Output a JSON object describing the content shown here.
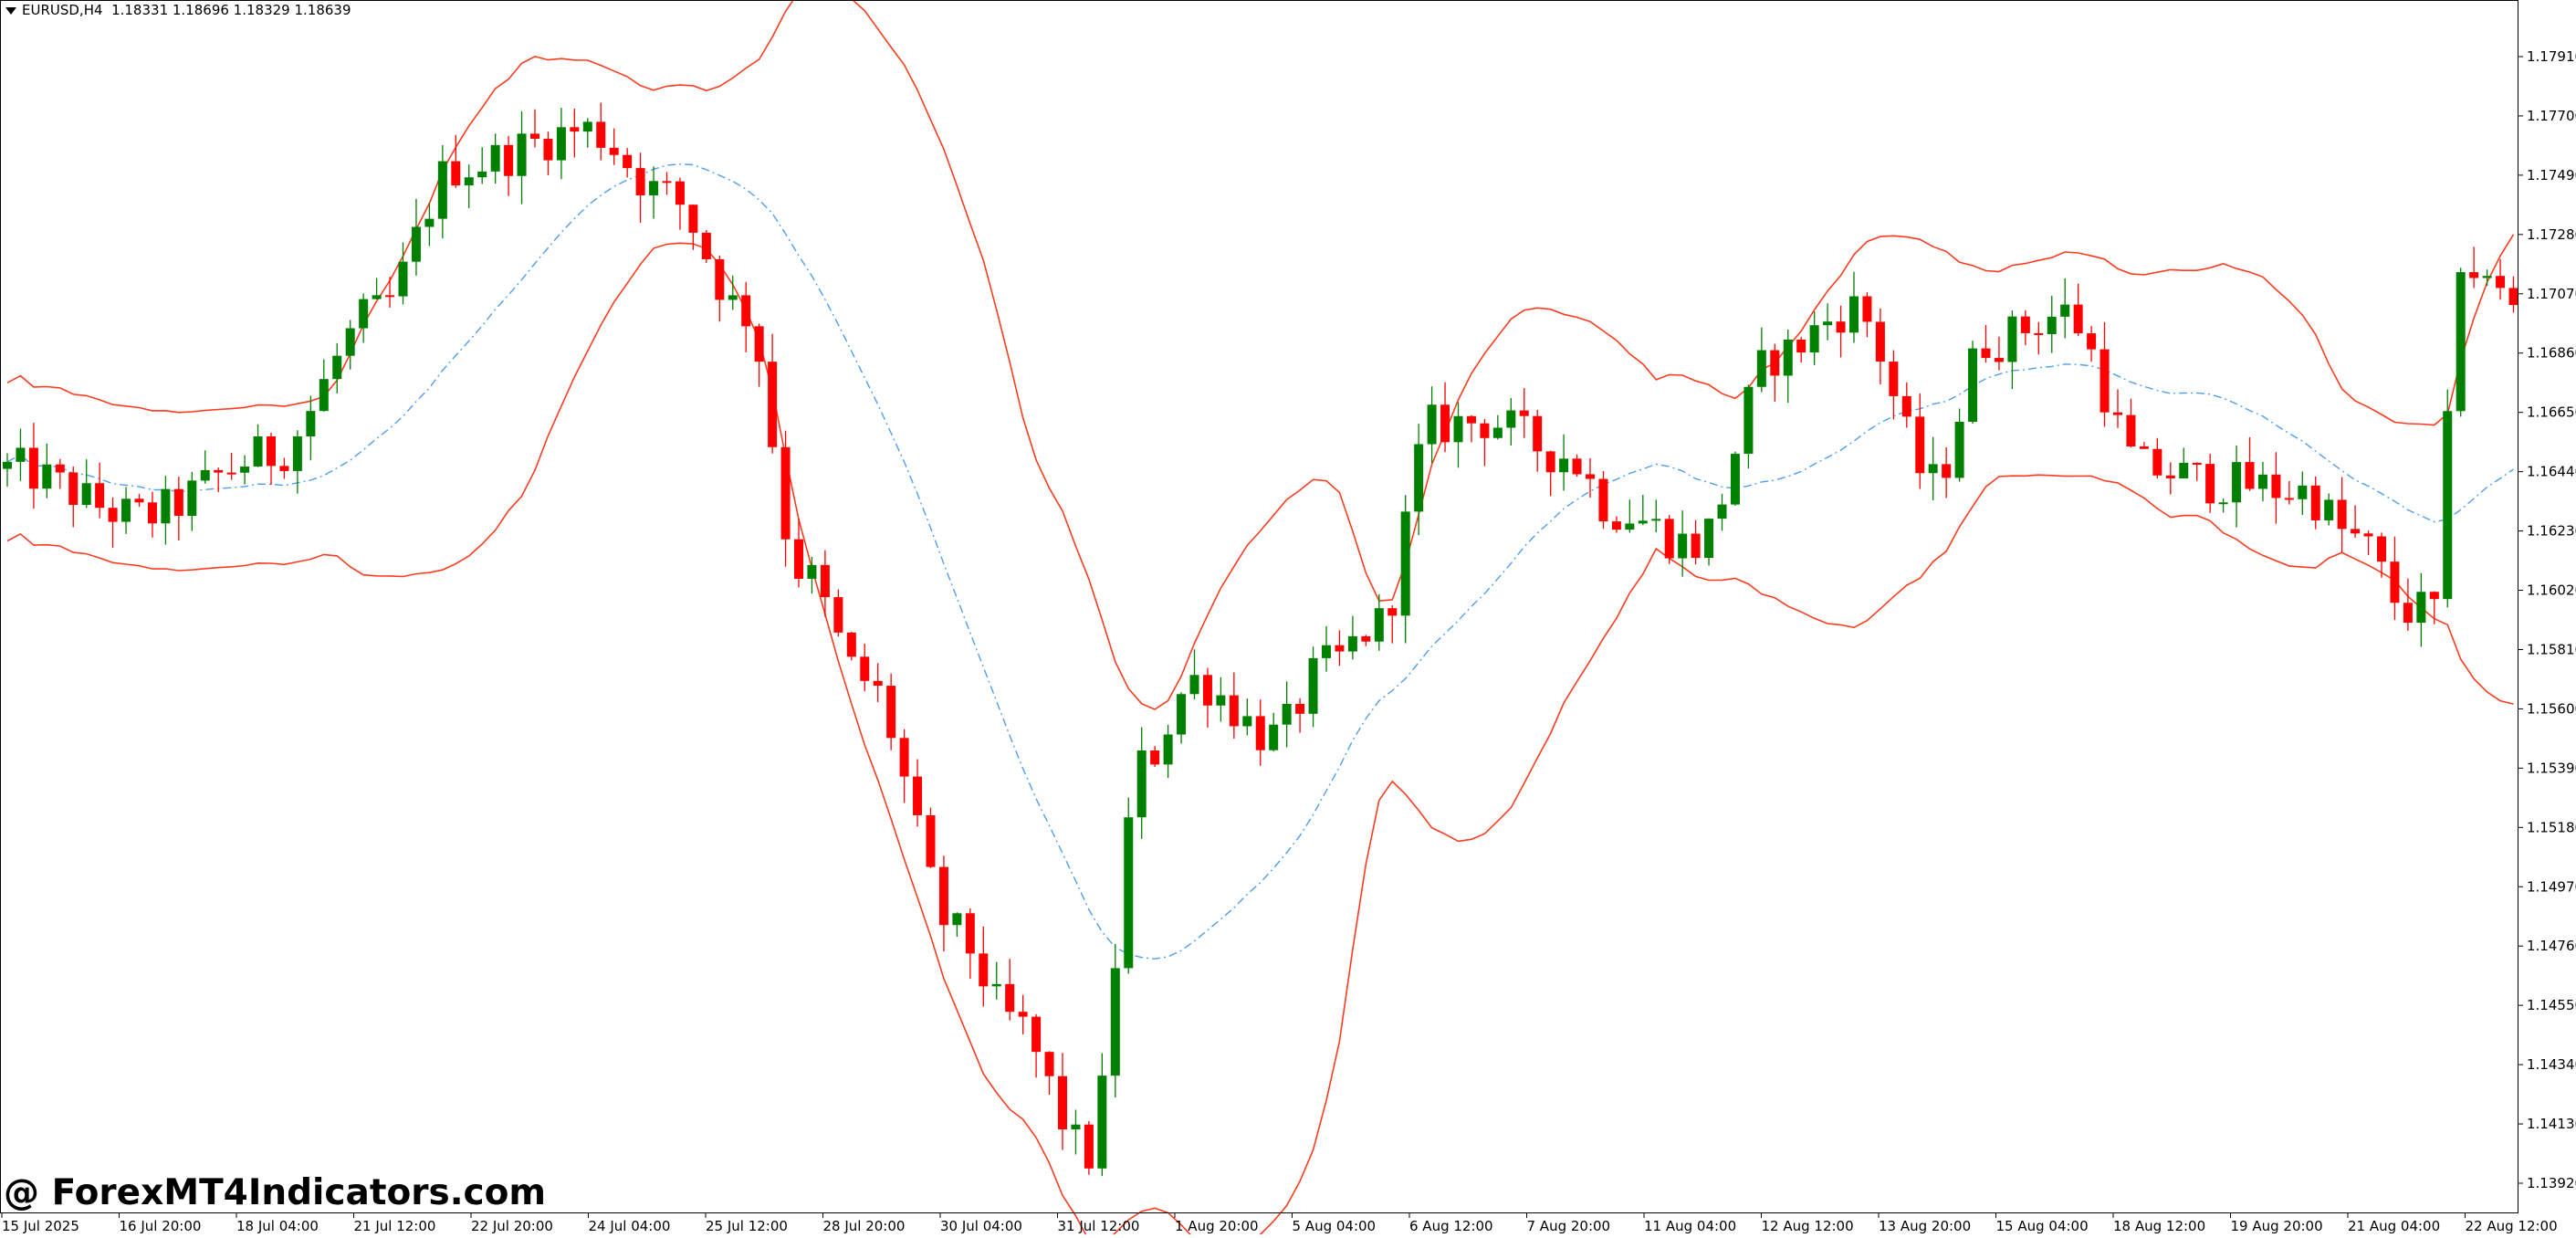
{
  "header": {
    "symbol_timeframe": "EURUSD,H4",
    "ohlc": "1.18331 1.18696 1.18329 1.18639"
  },
  "watermark": "@ ForexMT4Indicators.com",
  "colors": {
    "bull": "#008000",
    "bear": "#ff0000",
    "band": "#ff3b1f",
    "middle": "#4f9ff0",
    "axis": "#000000"
  },
  "chart_data": {
    "type": "candlestick",
    "y_axis_ticks": [
      "1.17910",
      "1.17700",
      "1.17490",
      "1.17280",
      "1.17070",
      "1.16860",
      "1.16650",
      "1.16440",
      "1.16230",
      "1.16020",
      "1.15810",
      "1.15600",
      "1.15390",
      "1.15180",
      "1.14970",
      "1.14760",
      "1.14550",
      "1.14340",
      "1.14130",
      "1.13920"
    ],
    "ylim": [
      1.1378,
      1.1808
    ],
    "x_axis_ticks": [
      "15 Jul 2025",
      "16 Jul 20:00",
      "18 Jul 04:00",
      "21 Jul 12:00",
      "22 Jul 20:00",
      "24 Jul 04:00",
      "25 Jul 12:00",
      "28 Jul 20:00",
      "30 Jul 04:00",
      "31 Jul 12:00",
      "1 Aug 20:00",
      "5 Aug 04:00",
      "6 Aug 12:00",
      "7 Aug 20:00",
      "11 Aug 04:00",
      "12 Aug 12:00",
      "13 Aug 20:00",
      "15 Aug 04:00",
      "18 Aug 12:00",
      "19 Aug 20:00",
      "21 Aug 04:00",
      "22 Aug 12:00"
    ],
    "bar_count": 191,
    "indicator": "Bollinger Bands style envelope (upper, middle, lower)",
    "anchors": [
      {
        "i": 0,
        "p": 1.1645
      },
      {
        "i": 10,
        "p": 1.1628
      },
      {
        "i": 20,
        "p": 1.165
      },
      {
        "i": 28,
        "p": 1.17
      },
      {
        "i": 34,
        "p": 1.1752
      },
      {
        "i": 44,
        "p": 1.1765
      },
      {
        "i": 50,
        "p": 1.1742
      },
      {
        "i": 56,
        "p": 1.17
      },
      {
        "i": 60,
        "p": 1.161
      },
      {
        "i": 65,
        "p": 1.157
      },
      {
        "i": 72,
        "p": 1.148
      },
      {
        "i": 76,
        "p": 1.145
      },
      {
        "i": 82,
        "p": 1.1402
      },
      {
        "i": 86,
        "p": 1.154
      },
      {
        "i": 90,
        "p": 1.157
      },
      {
        "i": 96,
        "p": 1.155
      },
      {
        "i": 100,
        "p": 1.1575
      },
      {
        "i": 104,
        "p": 1.159
      },
      {
        "i": 108,
        "p": 1.166
      },
      {
        "i": 112,
        "p": 1.1662
      },
      {
        "i": 118,
        "p": 1.165
      },
      {
        "i": 122,
        "p": 1.163
      },
      {
        "i": 128,
        "p": 1.1618
      },
      {
        "i": 134,
        "p": 1.1685
      },
      {
        "i": 140,
        "p": 1.1702
      },
      {
        "i": 146,
        "p": 1.164
      },
      {
        "i": 150,
        "p": 1.169
      },
      {
        "i": 156,
        "p": 1.17
      },
      {
        "i": 162,
        "p": 1.1645
      },
      {
        "i": 168,
        "p": 1.164
      },
      {
        "i": 174,
        "p": 1.1637
      },
      {
        "i": 178,
        "p": 1.162
      },
      {
        "i": 182,
        "p": 1.1595
      },
      {
        "i": 184,
        "p": 1.1595
      },
      {
        "i": 186,
        "p": 1.172
      },
      {
        "i": 188,
        "p": 1.171
      },
      {
        "i": 190,
        "p": 1.1704
      }
    ]
  }
}
